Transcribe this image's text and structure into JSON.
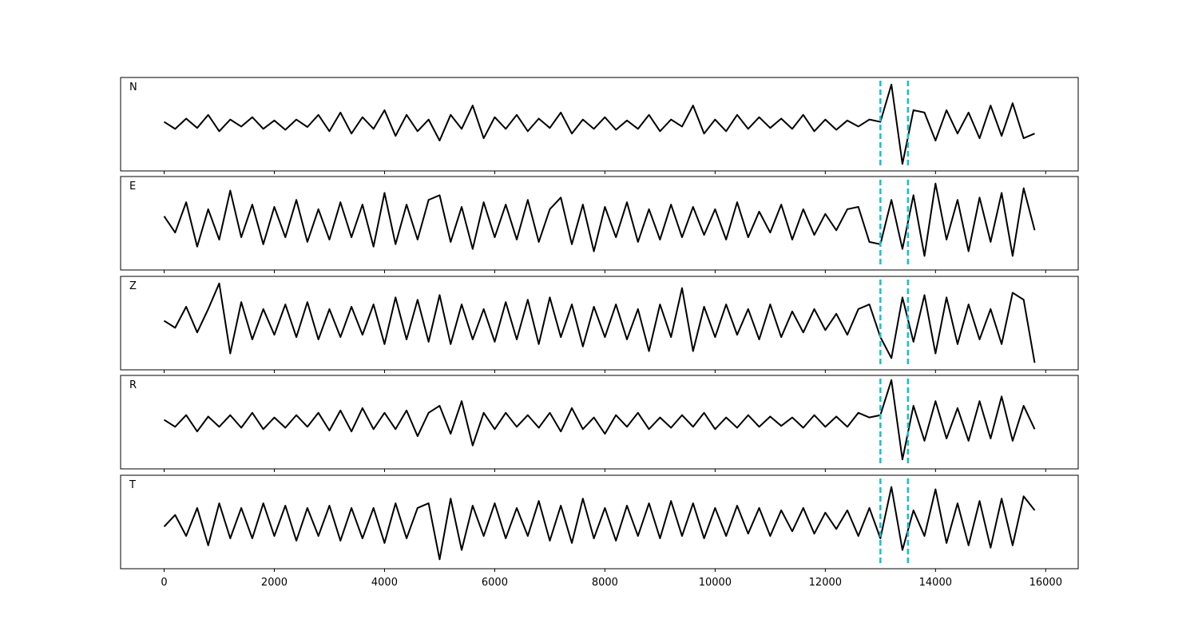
{
  "chart_data": {
    "type": "line",
    "x": [
      0,
      200,
      400,
      600,
      800,
      1000,
      1200,
      1400,
      1600,
      1800,
      2000,
      2200,
      2400,
      2600,
      2800,
      3000,
      3200,
      3400,
      3600,
      3800,
      4000,
      4200,
      4400,
      4600,
      4800,
      5000,
      5200,
      5400,
      5600,
      5800,
      6000,
      6200,
      6400,
      6600,
      6800,
      7000,
      7200,
      7400,
      7600,
      7800,
      8000,
      8200,
      8400,
      8600,
      8800,
      9000,
      9200,
      9400,
      9600,
      9800,
      10000,
      10200,
      10400,
      10600,
      10800,
      11000,
      11200,
      11400,
      11600,
      11800,
      12000,
      12200,
      12400,
      12600,
      12800,
      13000,
      13200,
      13400,
      13600,
      13800,
      14000,
      14200,
      14400,
      14600,
      14800,
      15000,
      15200,
      15400,
      15600,
      15800
    ],
    "series": [
      {
        "name": "N",
        "values": [
          0.05,
          -0.1,
          0.12,
          -0.08,
          0.2,
          -0.15,
          0.1,
          -0.05,
          0.15,
          -0.1,
          0.08,
          -0.12,
          0.1,
          -0.06,
          0.2,
          -0.15,
          0.25,
          -0.2,
          0.15,
          -0.1,
          0.3,
          -0.25,
          0.2,
          -0.15,
          0.1,
          -0.35,
          0.2,
          -0.1,
          0.4,
          -0.3,
          0.15,
          -0.1,
          0.2,
          -0.15,
          0.12,
          -0.08,
          0.25,
          -0.2,
          0.1,
          -0.1,
          0.15,
          -0.12,
          0.08,
          -0.1,
          0.2,
          -0.15,
          0.1,
          -0.05,
          0.4,
          -0.2,
          0.1,
          -0.15,
          0.2,
          -0.1,
          0.15,
          -0.08,
          0.12,
          -0.1,
          0.2,
          -0.15,
          0.1,
          -0.12,
          0.08,
          -0.05,
          0.1,
          0.05,
          0.85,
          -0.85,
          0.3,
          0.25,
          -0.35,
          0.3,
          -0.2,
          0.25,
          -0.3,
          0.4,
          -0.25,
          0.45,
          -0.3,
          -0.2
        ]
      },
      {
        "name": "E",
        "values": [
          0.15,
          -0.2,
          0.45,
          -0.5,
          0.3,
          -0.35,
          0.7,
          -0.3,
          0.4,
          -0.45,
          0.35,
          -0.3,
          0.5,
          -0.4,
          0.3,
          -0.35,
          0.45,
          -0.3,
          0.4,
          -0.5,
          0.65,
          -0.45,
          0.4,
          -0.35,
          0.5,
          0.6,
          -0.4,
          0.35,
          -0.55,
          0.45,
          -0.3,
          0.4,
          -0.35,
          0.5,
          -0.4,
          0.3,
          0.55,
          -0.45,
          0.4,
          -0.6,
          0.35,
          -0.3,
          0.45,
          -0.4,
          0.3,
          -0.35,
          0.4,
          -0.3,
          0.35,
          -0.25,
          0.3,
          -0.35,
          0.45,
          -0.3,
          0.25,
          -0.2,
          0.4,
          -0.35,
          0.3,
          -0.25,
          0.2,
          -0.15,
          0.3,
          0.35,
          -0.4,
          -0.45,
          0.5,
          -0.55,
          0.6,
          -0.7,
          0.85,
          -0.35,
          0.5,
          -0.6,
          0.55,
          -0.4,
          0.65,
          -0.7,
          0.75,
          -0.15
        ]
      },
      {
        "name": "Z",
        "values": [
          0.05,
          -0.1,
          0.35,
          -0.2,
          0.3,
          0.85,
          -0.65,
          0.45,
          -0.35,
          0.3,
          -0.25,
          0.4,
          -0.3,
          0.45,
          -0.35,
          0.3,
          -0.3,
          0.35,
          -0.25,
          0.4,
          -0.45,
          0.55,
          -0.35,
          0.5,
          -0.4,
          0.6,
          -0.45,
          0.4,
          -0.35,
          0.3,
          -0.4,
          0.45,
          -0.35,
          0.5,
          -0.45,
          0.55,
          -0.3,
          0.4,
          -0.5,
          0.35,
          -0.3,
          0.4,
          -0.35,
          0.3,
          -0.6,
          0.4,
          -0.3,
          0.75,
          -0.6,
          0.35,
          -0.3,
          0.4,
          -0.25,
          0.3,
          -0.35,
          0.4,
          -0.3,
          0.25,
          -0.2,
          0.3,
          -0.15,
          0.2,
          -0.25,
          0.3,
          0.4,
          -0.3,
          -0.75,
          0.55,
          -0.4,
          0.6,
          -0.65,
          0.55,
          -0.45,
          0.4,
          -0.35,
          0.3,
          -0.45,
          0.65,
          0.5,
          -0.85
        ]
      },
      {
        "name": "R",
        "values": [
          0.05,
          -0.1,
          0.15,
          -0.2,
          0.12,
          -0.1,
          0.15,
          -0.12,
          0.2,
          -0.15,
          0.1,
          -0.12,
          0.15,
          -0.1,
          0.2,
          -0.18,
          0.25,
          -0.2,
          0.3,
          -0.15,
          0.2,
          -0.15,
          0.25,
          -0.3,
          0.2,
          0.35,
          -0.25,
          0.45,
          -0.5,
          0.2,
          -0.15,
          0.2,
          -0.1,
          0.15,
          -0.12,
          0.2,
          -0.2,
          0.3,
          -0.15,
          0.1,
          -0.25,
          0.15,
          -0.1,
          0.2,
          -0.15,
          0.1,
          -0.12,
          0.15,
          -0.1,
          0.2,
          -0.15,
          0.1,
          -0.12,
          0.15,
          -0.1,
          0.12,
          -0.08,
          0.1,
          -0.12,
          0.15,
          -0.1,
          0.12,
          -0.1,
          0.2,
          0.1,
          0.15,
          0.9,
          -0.8,
          0.35,
          -0.4,
          0.45,
          -0.35,
          0.3,
          -0.4,
          0.45,
          -0.35,
          0.55,
          -0.4,
          0.35,
          -0.15
        ]
      },
      {
        "name": "T",
        "values": [
          -0.1,
          0.15,
          -0.3,
          0.3,
          -0.5,
          0.4,
          -0.35,
          0.3,
          -0.35,
          0.4,
          -0.3,
          0.35,
          -0.4,
          0.3,
          -0.3,
          0.35,
          -0.4,
          0.3,
          -0.35,
          0.3,
          -0.45,
          0.4,
          -0.35,
          0.3,
          0.4,
          -0.8,
          0.5,
          -0.6,
          0.35,
          -0.3,
          0.4,
          -0.35,
          0.3,
          -0.3,
          0.45,
          -0.4,
          0.35,
          -0.45,
          0.5,
          -0.35,
          0.3,
          -0.4,
          0.35,
          -0.3,
          0.4,
          -0.35,
          0.45,
          -0.3,
          0.4,
          -0.35,
          0.3,
          -0.3,
          0.35,
          -0.25,
          0.3,
          -0.3,
          0.25,
          -0.2,
          0.3,
          -0.25,
          0.2,
          -0.15,
          0.25,
          -0.3,
          0.3,
          -0.35,
          0.75,
          -0.6,
          0.25,
          -0.3,
          0.7,
          -0.45,
          0.4,
          -0.5,
          0.45,
          -0.55,
          0.5,
          -0.5,
          0.55,
          0.25
        ]
      }
    ],
    "color": "#000000",
    "xlim": [
      -790,
      16590
    ],
    "xticks": [
      0,
      2000,
      4000,
      6000,
      8000,
      10000,
      12000,
      14000,
      16000
    ],
    "ylim": [
      -1,
      1
    ],
    "vlines": {
      "values": [
        13000,
        13500
      ],
      "color": "#17becf"
    }
  }
}
